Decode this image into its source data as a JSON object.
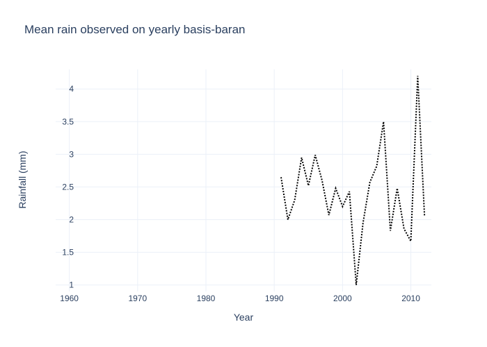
{
  "chart_data": {
    "type": "line",
    "title": "Mean rain observed on yearly basis-baran",
    "xlabel": "Year",
    "ylabel": "Rainfall (mm)",
    "xlim": [
      1958,
      2013
    ],
    "ylim": [
      0.9,
      4.3
    ],
    "x_ticks": [
      1960,
      1970,
      1980,
      1990,
      2000,
      2010
    ],
    "y_ticks": [
      1,
      1.5,
      2,
      2.5,
      3,
      3.5,
      4
    ],
    "grid": true,
    "line_color": "#000000",
    "line_style": "dotted",
    "series": [
      {
        "x": [
          1991,
          1992,
          1993,
          1994,
          1995,
          1996,
          1997,
          1998,
          1999,
          2000,
          2001,
          2002,
          2003,
          2004,
          2005,
          2006,
          2007,
          2008,
          2009,
          2010,
          2011,
          2012
        ],
        "values": [
          2.65,
          2.0,
          2.3,
          2.95,
          2.52,
          2.99,
          2.6,
          2.07,
          2.48,
          2.2,
          2.43,
          1.0,
          1.95,
          2.57,
          2.82,
          3.5,
          1.83,
          2.48,
          1.86,
          1.67,
          4.2,
          2.05
        ]
      }
    ]
  }
}
